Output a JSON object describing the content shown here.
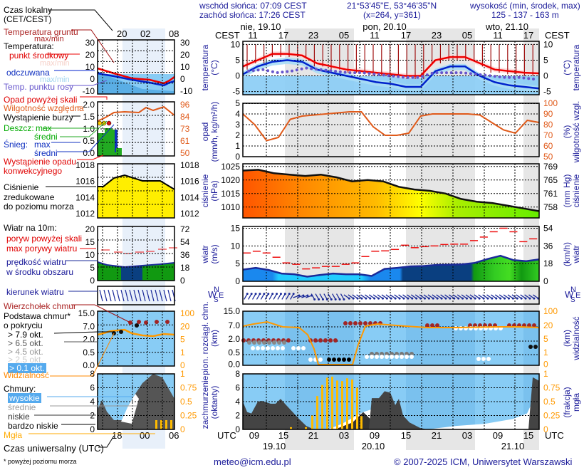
{
  "header": {
    "sunrise": "wschód słońca: 07:09 CEST",
    "sunset": "zachód słońca: 17:26 CEST",
    "coords": "21°53'45\"E, 53°46'35\"N",
    "grid": "(x=264,  y=361)",
    "elevation_title": "wysokość (min, środek, max)",
    "elevation_values": "125 - 137 - 163 m"
  },
  "time_axis": {
    "top_label": "CEST",
    "bottom_label": "UTC",
    "top_days": [
      "nie, 19.10",
      "pon, 20.10",
      "wto, 21.10"
    ],
    "top_hours": [
      "11",
      "17",
      "23",
      "05",
      "11",
      "17",
      "23",
      "05",
      "11",
      "17"
    ],
    "bottom_hours": [
      "09",
      "15",
      "21",
      "03",
      "09",
      "15",
      "21",
      "03",
      "09",
      "15"
    ],
    "bottom_days": [
      "19.10",
      "20.10",
      "21.10"
    ]
  },
  "legend": {
    "local_time": "Czas lokalny",
    "local_time2": "(CET/CEST)",
    "ground_temp": "Temperatura gruntu",
    "ground_temp2": "max/min",
    "temperature": "Temperatura:",
    "mid_point": "punkt środkowy",
    "maxmin1": "max/min",
    "felt": "odczuwana",
    "maxmin2": "max/min",
    "dew_point": "Temp. punktu rosy",
    "precip_over": "Opad powyżej skali",
    "humidity": "Wilgotność względna",
    "storm": "Wystąpienie burzy",
    "rain": "Deszcz:",
    "rain_max": "max",
    "rain_avg": "średni",
    "snow": "Śnieg:",
    "snow_max": "max",
    "snow_avg": "średni",
    "convective": "Wystąpienie opadu",
    "convective2": "konwekcyjnego",
    "pressure": "Ciśnienie",
    "pressure2": "zredukowane",
    "pressure3": "do poziomu morza",
    "wind10": "Wiatr na 10m:",
    "gust_over": "poryw powyżej skali",
    "max_gust": "max porywy wiatru",
    "wind_speed": "prędkość wiatru",
    "wind_speed2": "w środku obszaru",
    "wind_dir": "kierunek wiatru",
    "cloud_top": "Wierzchołek chmur",
    "cloud_base": "Podstawa chmur*",
    "cloud_base2": "o pokryciu",
    "okt79": "> 7.9 okt.",
    "okt65": "> 6.5 okt.",
    "okt45": "> 4.5 okt.",
    "okt25": "> 2.5 okt.",
    "okt01": "> 0.1 okt.",
    "visibility": "Widzialność",
    "clouds": "Chmury:",
    "high": "wysokie",
    "mid": "średnie",
    "low": "niskie",
    "vlow": "bardzo niskie",
    "fog": "Mgła",
    "utc": "Czas uniwersalny (UTC)",
    "footnote": "* powyżej poziomu morza",
    "top_ticks": [
      "20",
      "02",
      "08"
    ],
    "bottom_ticks": [
      "18",
      "00",
      "06"
    ],
    "temp_left": [
      "30",
      "20",
      "10",
      "0",
      "-10"
    ],
    "temp_right": [
      "30",
      "20",
      "10",
      "0",
      "-10"
    ],
    "precip_left": [
      "2.0",
      "1.5",
      "1.0",
      "0.5",
      "0.0"
    ],
    "precip_right": [
      "96",
      "84",
      "73",
      "61",
      "50"
    ],
    "press_left": [
      "1018",
      "1016",
      "1014",
      "1012"
    ],
    "press_right": [
      "1018",
      "1016",
      "1014",
      "1012"
    ],
    "wind_left": [
      "20",
      "15",
      "10",
      "5",
      "0"
    ],
    "wind_right": [
      "72",
      "54",
      "36",
      "18",
      "0"
    ],
    "cloud_left": [
      "15.0",
      "7.0",
      "2.0",
      "0.5",
      "0.0"
    ],
    "cloud_right": [
      "100",
      "20",
      "5",
      "1",
      "0"
    ],
    "cover_left": [
      "8",
      "6",
      "4",
      "2",
      "0"
    ],
    "cover_right": [
      "1",
      "0.75",
      "0.5",
      "0.25",
      "0"
    ]
  },
  "panels": {
    "temperature": {
      "ylabel": "temperatura",
      "yunit": "(°C)",
      "left_ticks": [
        "10",
        "5",
        "0",
        "-5"
      ],
      "right_ticks": [
        "10",
        "5",
        "0",
        "-5"
      ]
    },
    "precip": {
      "ylabel": "opad",
      "yunit": "(mm/h, kg/m²/h)",
      "left_ticks": [
        "5",
        "4",
        "3",
        "2",
        "1",
        "0"
      ],
      "right_label": "wilgotność wzgl.",
      "right_unit": "(%)",
      "right_ticks": [
        "100",
        "90",
        "80",
        "70",
        "60",
        "50"
      ]
    },
    "pressure": {
      "ylabel": "ciśnienie",
      "yunit": "(hPa)",
      "left_ticks": [
        "1025",
        "1020",
        "1015",
        "1010"
      ],
      "right_label": "ciśnienie",
      "right_unit": "(mm Hg)",
      "right_ticks": [
        "769",
        "765",
        "761",
        "758"
      ]
    },
    "wind": {
      "ylabel": "wiatr",
      "yunit": "(m/s)",
      "left_ticks": [
        "15",
        "10",
        "5",
        "0"
      ],
      "right_label": "wiatr",
      "right_unit": "(km/h)",
      "right_ticks": [
        "54",
        "36",
        "18",
        "0"
      ]
    },
    "wind_dir": {
      "compass_n": "N",
      "compass_w": "W",
      "compass_s": "S",
      "compass_e": "E"
    },
    "clouds": {
      "ylabel": "pion. rozciągł. chm.",
      "yunit": "(km)",
      "left_ticks": [
        "15.0",
        "7.0",
        "2.0",
        "0.5",
        "0.0"
      ],
      "right_label": "widzialność",
      "right_unit": "(km)",
      "right_ticks": [
        "100",
        "20",
        "5",
        "1",
        "0"
      ]
    },
    "cover": {
      "ylabel": "zachmurzenie",
      "yunit": "(oktanty)",
      "left_ticks": [
        "8",
        "6",
        "4",
        "2",
        "0"
      ],
      "right_label": "mgła",
      "right_unit": "(frakcja)",
      "right_ticks": [
        "1",
        "0.75",
        "0.5",
        "0.25",
        "0"
      ]
    }
  },
  "footer": {
    "email": "meteo@icm.edu.pl",
    "copyright": "© 2007-2025 ICM, Uniwersytet Warszawski"
  },
  "colors": {
    "navy": "#1a1a99",
    "temp_red": "#ee0000",
    "felt_blue": "#0022cc",
    "dew": "#6655cc",
    "humidity": "#e05a1a",
    "visibility": "#ff9900",
    "fog_bar": "#ffbb00",
    "sky": "#88ccf5",
    "night": "#e6e6e6"
  },
  "chart_data": [
    {
      "type": "line",
      "title": "temperatura",
      "ylabel": "(°C)",
      "ylim": [
        -6,
        11
      ],
      "x_hours": [
        0,
        3,
        6,
        9,
        12,
        15,
        18,
        21,
        24,
        27,
        30,
        33,
        36,
        39,
        42,
        45,
        48,
        51,
        54,
        57,
        60
      ],
      "series": [
        {
          "name": "punkt środkowy",
          "values": [
            3,
            5,
            7,
            7,
            6.5,
            4,
            3,
            2,
            1.5,
            1,
            0.5,
            0,
            0,
            5,
            6,
            6,
            4,
            2,
            1.5,
            1,
            0.8
          ]
        },
        {
          "name": "odczuwana",
          "values": [
            0.5,
            3,
            4.5,
            5,
            4.5,
            2,
            1,
            0,
            -1,
            -2,
            -2.5,
            -3.5,
            -3.5,
            1.5,
            3,
            3,
            0,
            -2,
            -3,
            -3.5,
            -4
          ]
        },
        {
          "name": "Temp. punktu rosy",
          "values": [
            1.5,
            2,
            1,
            1.5,
            2.5,
            2,
            1.5,
            1,
            1,
            0.5,
            0,
            -0.5,
            -0.5,
            1,
            1,
            1,
            0.5,
            0,
            -0.5,
            -0.5,
            -1
          ]
        }
      ]
    },
    {
      "type": "line",
      "title": "wilgotność wzgl.",
      "ylabel": "(%)",
      "ylim": [
        50,
        100
      ],
      "series": [
        {
          "name": "wilgotność",
          "values": [
            90,
            80,
            65,
            68,
            85,
            88,
            89,
            90,
            91,
            92,
            92,
            78,
            70,
            70,
            72,
            88,
            90,
            90,
            90,
            90,
            89,
            82,
            75,
            72,
            84,
            82
          ]
        }
      ]
    },
    {
      "type": "area",
      "title": "ciśnienie",
      "ylabel": "(hPa)",
      "ylim": [
        1006,
        1026
      ],
      "series": [
        {
          "name": "ciśnienie",
          "values": [
            1023.5,
            1023.8,
            1022.5,
            1022,
            1021.5,
            1022,
            1021,
            1019.5,
            1020,
            1019.5,
            1017.5,
            1016.5,
            1016,
            1015,
            1013,
            1012,
            1011.5,
            1010.5,
            1009.5,
            1008.5
          ]
        }
      ]
    },
    {
      "type": "line",
      "title": "wiatr",
      "ylabel": "(m/s)",
      "ylim": [
        0,
        15
      ],
      "series": [
        {
          "name": "prędkość wiatru",
          "values": [
            3.3,
            3.8,
            3.2,
            2.2,
            2,
            1.3,
            1.8,
            2.2,
            2,
            2,
            1.5,
            3.5,
            3.8,
            4.2,
            4.3,
            4.6,
            4.7,
            4.8,
            5.2,
            6.3,
            7.2,
            6,
            5.7,
            6.2
          ]
        },
        {
          "name": "max porywy",
          "values": [
            8,
            8.5,
            8,
            6.8,
            5.2,
            4.8,
            3.5,
            3.8,
            4.2,
            4.2,
            4.8,
            5.2,
            7,
            8.5,
            8.6,
            9,
            10.2,
            9.5,
            9.8,
            10,
            10.4,
            10.5,
            10.5,
            11.5,
            12.5,
            14,
            15,
            14,
            11.2,
            12
          ]
        }
      ]
    },
    {
      "type": "bar",
      "title": "mgła",
      "ylabel": "(frakcja)",
      "ylim": [
        0,
        1
      ],
      "values": [
        0.04,
        0.04,
        0.25,
        0.6,
        0.8,
        0.93,
        0.95,
        0.88,
        0.87,
        0.92,
        0.9,
        0.75,
        0.24
      ]
    }
  ]
}
